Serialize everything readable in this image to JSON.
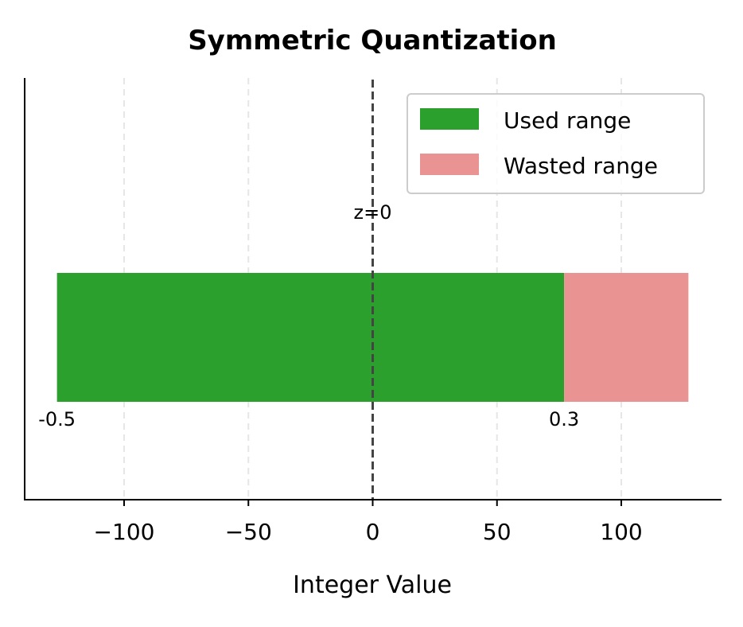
{
  "chart_data": {
    "type": "bar",
    "orientation": "horizontal",
    "title": "Symmetric Quantization",
    "xlabel": "Integer Value",
    "ylabel": "",
    "xlim": [
      -140,
      140
    ],
    "xticks": [
      -100,
      -50,
      0,
      50,
      100
    ],
    "xtick_labels": [
      "−100",
      "−50",
      "0",
      "50",
      "100"
    ],
    "grid": "x-dashed",
    "series": [
      {
        "name": "Used range",
        "start": -127,
        "end": 77,
        "color": "#2ca02c"
      },
      {
        "name": "Wasted range",
        "start": 77,
        "end": 127,
        "color": "#ea9393"
      }
    ],
    "zero_point": {
      "value": 0,
      "label": "z=0",
      "color": "#444444"
    },
    "annotations": [
      {
        "text": "-0.5",
        "x": -127
      },
      {
        "text": "0.3",
        "x": 77
      }
    ],
    "legend": {
      "placement": "top-right",
      "entries": [
        "Used range",
        "Wasted range"
      ]
    }
  }
}
